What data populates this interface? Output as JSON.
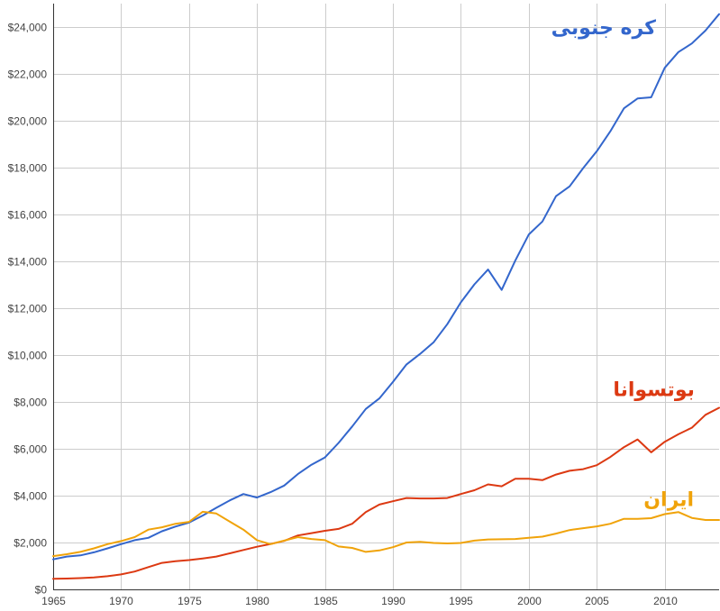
{
  "chart_data": {
    "type": "line",
    "title": "",
    "xlabel": "",
    "ylabel": "",
    "xlim": [
      1965,
      2014
    ],
    "ylim": [
      0,
      25000
    ],
    "grid": true,
    "legend": "direct labels next to each line",
    "x_ticks": [
      1965,
      1970,
      1975,
      1980,
      1985,
      1990,
      1995,
      2000,
      2005,
      2010
    ],
    "x_tick_labels": [
      "1965",
      "1970",
      "1975",
      "1980",
      "1985",
      "1990",
      "1995",
      "2000",
      "2005",
      "2010"
    ],
    "y_ticks": [
      0,
      2000,
      4000,
      6000,
      8000,
      10000,
      12000,
      14000,
      16000,
      18000,
      20000,
      22000,
      24000
    ],
    "y_tick_labels": [
      "$0",
      "$2,000",
      "$4,000",
      "$6,000",
      "$8,000",
      "$10,000",
      "$12,000",
      "$14,000",
      "$16,000",
      "$18,000",
      "$20,000",
      "$22,000",
      "$24,000"
    ],
    "x": [
      1965,
      1966,
      1967,
      1968,
      1969,
      1970,
      1971,
      1972,
      1973,
      1974,
      1975,
      1976,
      1977,
      1978,
      1979,
      1980,
      1981,
      1982,
      1983,
      1984,
      1985,
      1986,
      1987,
      1988,
      1989,
      1990,
      1991,
      1992,
      1993,
      1994,
      1995,
      1996,
      1997,
      1998,
      1999,
      2000,
      2001,
      2002,
      2003,
      2004,
      2005,
      2006,
      2007,
      2008,
      2009,
      2010,
      2011,
      2012,
      2013,
      2014
    ],
    "series": [
      {
        "name": "کره جنوبی",
        "color": "#3366cc",
        "label_anchor_x": 2005.5,
        "label_anchor_y": 23700,
        "values": [
          1280,
          1400,
          1450,
          1580,
          1750,
          1930,
          2100,
          2200,
          2480,
          2680,
          2850,
          3150,
          3480,
          3800,
          4070,
          3920,
          4150,
          4430,
          4920,
          5320,
          5630,
          6250,
          6950,
          7700,
          8150,
          8850,
          9600,
          10050,
          10550,
          11320,
          12250,
          13020,
          13650,
          12780,
          14030,
          15150,
          15700,
          16780,
          17200,
          17980,
          18700,
          19550,
          20530,
          20950,
          21000,
          22260,
          22930,
          23300,
          23850,
          24550
        ]
      },
      {
        "name": "بوتسوانا",
        "color": "#dc3912",
        "label_anchor_x": 2009.2,
        "label_anchor_y": 8250,
        "values": [
          450,
          460,
          480,
          510,
          560,
          640,
          760,
          950,
          1130,
          1200,
          1250,
          1320,
          1400,
          1540,
          1680,
          1820,
          1940,
          2070,
          2300,
          2400,
          2500,
          2580,
          2800,
          3300,
          3620,
          3760,
          3900,
          3880,
          3880,
          3900,
          4070,
          4230,
          4480,
          4400,
          4720,
          4720,
          4660,
          4900,
          5060,
          5130,
          5300,
          5650,
          6070,
          6400,
          5850,
          6300,
          6620,
          6900,
          7450,
          7750
        ]
      },
      {
        "name": "ایران",
        "color": "#f0a30a",
        "label_anchor_x": 2010.3,
        "label_anchor_y": 3550,
        "values": [
          1420,
          1500,
          1600,
          1750,
          1930,
          2060,
          2230,
          2550,
          2650,
          2800,
          2880,
          3310,
          3240,
          2890,
          2550,
          2100,
          1930,
          2080,
          2230,
          2150,
          2100,
          1830,
          1770,
          1600,
          1660,
          1800,
          2000,
          2030,
          1980,
          1960,
          1980,
          2080,
          2130,
          2140,
          2150,
          2200,
          2250,
          2380,
          2530,
          2610,
          2690,
          2800,
          3010,
          3010,
          3040,
          3210,
          3300,
          3050,
          2960,
          2960
        ]
      }
    ]
  }
}
